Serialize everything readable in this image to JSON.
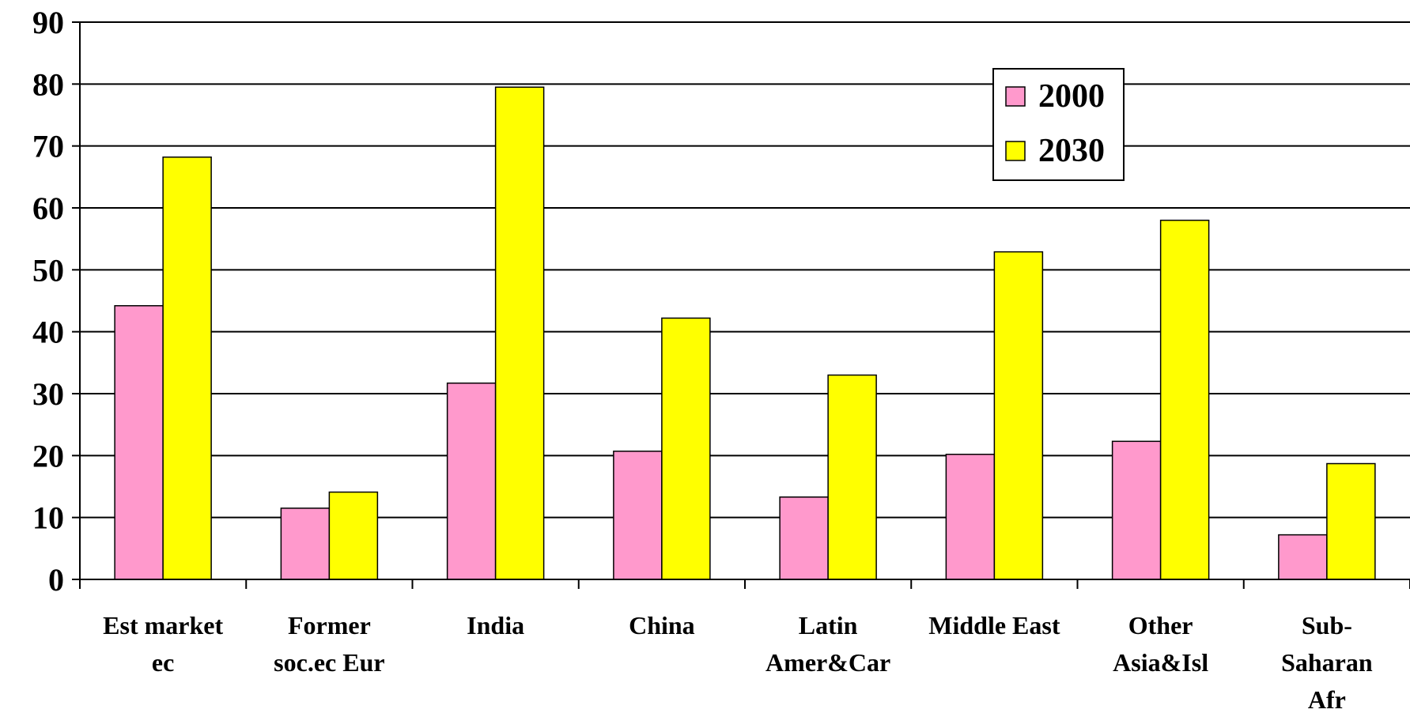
{
  "chart_data": {
    "type": "bar",
    "title": "",
    "xlabel": "",
    "ylabel": "",
    "ylim": [
      0,
      90
    ],
    "yticks": [
      0,
      10,
      20,
      30,
      40,
      50,
      60,
      70,
      80,
      90
    ],
    "grid": true,
    "legend_position": "top-right",
    "categories": [
      [
        "Est market",
        "ec"
      ],
      [
        "Former",
        "soc.ec Eur"
      ],
      [
        "India"
      ],
      [
        "China"
      ],
      [
        "Latin",
        "Amer&Car"
      ],
      [
        "Middle East"
      ],
      [
        "Other",
        "Asia&Isl"
      ],
      [
        "Sub-",
        "Saharan",
        "Afr"
      ]
    ],
    "series": [
      {
        "name": "2000",
        "color": "#ff99cc",
        "values": [
          44.2,
          11.5,
          31.7,
          20.7,
          13.3,
          20.2,
          22.3,
          7.2
        ]
      },
      {
        "name": "2030",
        "color": "#ffff00",
        "values": [
          68.2,
          14.1,
          79.5,
          42.2,
          33.0,
          52.9,
          58.0,
          18.7
        ]
      }
    ]
  }
}
